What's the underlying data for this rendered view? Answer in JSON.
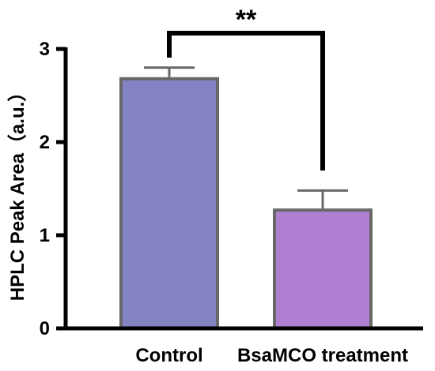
{
  "chart_data": {
    "type": "bar",
    "categories": [
      "Control",
      "BsaMCO treatment"
    ],
    "values": [
      2.68,
      1.27
    ],
    "error_bars": [
      0.12,
      0.21
    ],
    "bar_colors": [
      "#8484c4",
      "#b07fd2"
    ],
    "bar_border_color": "#686868",
    "ylabel": "HPLC Peak Area（a.u.）",
    "ylim": [
      0,
      3
    ],
    "yticks": [
      0,
      1,
      2,
      3
    ],
    "grid": false,
    "significance": {
      "label": "**",
      "between": [
        "Control",
        "BsaMCO treatment"
      ]
    }
  }
}
